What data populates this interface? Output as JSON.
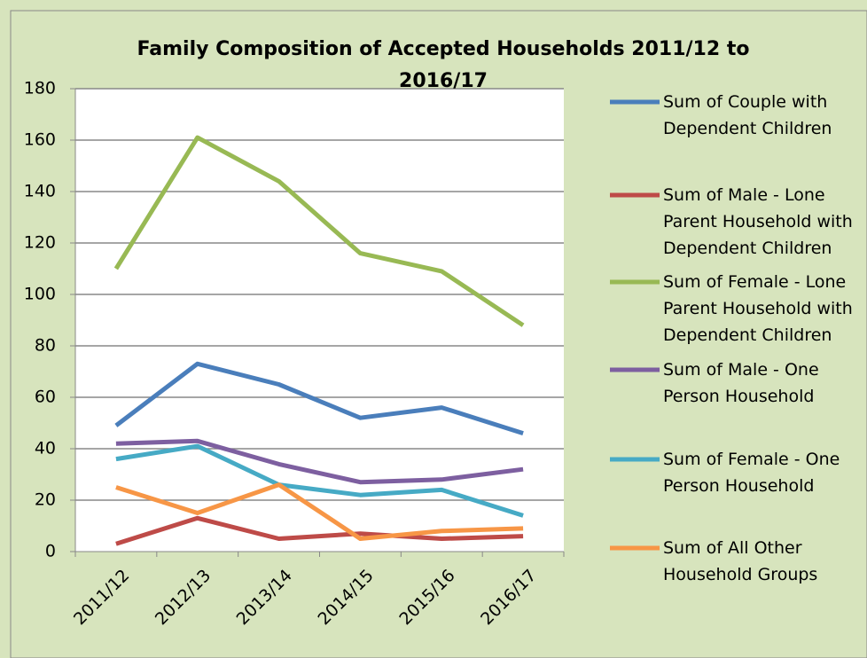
{
  "chart_data": {
    "type": "line",
    "title": "Family Composition of Accepted Households 2011/12 to 2016/17",
    "categories": [
      "2011/12",
      "2012/13",
      "2013/14",
      "2014/15",
      "2015/16",
      "2016/17"
    ],
    "series": [
      {
        "name": "Sum of Couple with Dependent Children",
        "color": "#4a7ebb",
        "values": [
          49,
          73,
          65,
          52,
          56,
          46
        ]
      },
      {
        "name": "Sum of Male - Lone Parent Household with Dependent Children",
        "color": "#be4b48",
        "values": [
          3,
          13,
          5,
          7,
          5,
          6
        ]
      },
      {
        "name": "Sum of Female - Lone Parent Household with Dependent Children",
        "color": "#98b954",
        "values": [
          110,
          161,
          144,
          116,
          109,
          88
        ]
      },
      {
        "name": "Sum of Male - One Person Household",
        "color": "#7d5fa0",
        "values": [
          42,
          43,
          34,
          27,
          28,
          32
        ]
      },
      {
        "name": "Sum of Female - One Person Household",
        "color": "#46aac5",
        "values": [
          36,
          41,
          26,
          22,
          24,
          14
        ]
      },
      {
        "name": "Sum of All Other Household Groups",
        "color": "#f79646",
        "values": [
          25,
          15,
          26,
          5,
          8,
          9
        ]
      }
    ],
    "ylim": [
      0,
      180
    ],
    "yticks": [
      0,
      20,
      40,
      60,
      80,
      100,
      120,
      140,
      160,
      180
    ],
    "grid": true,
    "legend": "right"
  }
}
